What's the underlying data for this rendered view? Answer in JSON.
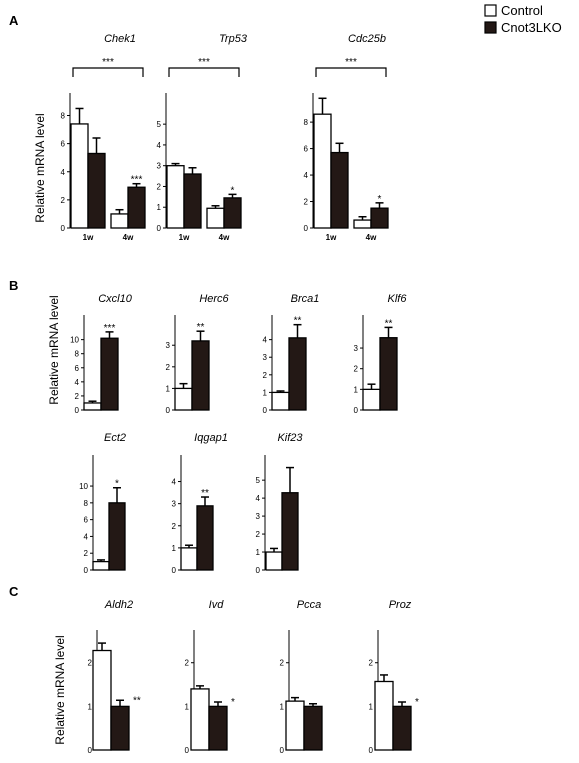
{
  "legend": {
    "items": [
      {
        "label": "Control",
        "color": "#ffffff"
      },
      {
        "label": "Cnot3LKO",
        "color": "#231815"
      }
    ]
  },
  "colors": {
    "control": "#ffffff",
    "knockout": "#231815",
    "stroke": "#000000"
  },
  "panels": [
    {
      "label": "A",
      "ylabel": "Relative mRNA level"
    },
    {
      "label": "B",
      "ylabel": "Relative mRNA level"
    },
    {
      "label": "C",
      "ylabel": "Relative mRNA level"
    }
  ],
  "chart_data": [
    {
      "type": "bar",
      "panel": "A",
      "title": "Chek1",
      "categories": [
        "1w",
        "4w"
      ],
      "yticks": [
        0,
        2,
        4,
        6,
        8
      ],
      "ylim": [
        0,
        9.6
      ],
      "series": [
        {
          "name": "Control",
          "values": [
            7.4,
            1.0
          ],
          "errors": [
            1.1,
            0.3
          ]
        },
        {
          "name": "Cnot3LKO",
          "values": [
            5.3,
            2.9
          ],
          "errors": [
            1.1,
            0.25
          ]
        }
      ],
      "annotations": [
        {
          "text": "***",
          "type": "bracket",
          "from": 0,
          "to": 1
        },
        {
          "text": "***",
          "type": "bar",
          "category": 1,
          "series": 1
        }
      ]
    },
    {
      "type": "bar",
      "panel": "A",
      "title": "Trp53",
      "categories": [
        "1w",
        "4w"
      ],
      "yticks": [
        0,
        1,
        2,
        3,
        4,
        5
      ],
      "ylim": [
        0,
        6.5
      ],
      "series": [
        {
          "name": "Control",
          "values": [
            3.0,
            0.95
          ],
          "errors": [
            0.1,
            0.12
          ]
        },
        {
          "name": "Cnot3LKO",
          "values": [
            2.6,
            1.45
          ],
          "errors": [
            0.3,
            0.17
          ]
        }
      ],
      "annotations": [
        {
          "text": "***",
          "type": "bracket",
          "from": 0,
          "to": 1
        },
        {
          "text": "*",
          "type": "bar",
          "category": 1,
          "series": 1
        }
      ]
    },
    {
      "type": "bar",
      "panel": "A",
      "title": "Cdc25b",
      "categories": [
        "1w",
        "4w"
      ],
      "yticks": [
        0,
        2,
        4,
        6,
        8
      ],
      "ylim": [
        0,
        10.2
      ],
      "series": [
        {
          "name": "Control",
          "values": [
            8.6,
            0.6
          ],
          "errors": [
            1.2,
            0.25
          ]
        },
        {
          "name": "Cnot3LKO",
          "values": [
            5.7,
            1.5
          ],
          "errors": [
            0.7,
            0.4
          ]
        }
      ],
      "annotations": [
        {
          "text": "***",
          "type": "bracket",
          "from": 0,
          "to": 1
        },
        {
          "text": "*",
          "type": "bar",
          "category": 1,
          "series": 1
        }
      ]
    },
    {
      "type": "bar",
      "panel": "B",
      "title": "Cxcl10",
      "categories": [
        ""
      ],
      "yticks": [
        0,
        2,
        4,
        6,
        8,
        10
      ],
      "ylim": [
        0,
        13.5
      ],
      "series": [
        {
          "name": "Control",
          "values": [
            1.0
          ],
          "errors": [
            0.25
          ]
        },
        {
          "name": "Cnot3LKO",
          "values": [
            10.2
          ],
          "errors": [
            0.9
          ]
        }
      ],
      "annotations": [
        {
          "text": "***",
          "type": "bar",
          "category": 0,
          "series": 1
        }
      ]
    },
    {
      "type": "bar",
      "panel": "B",
      "title": "Herc6",
      "categories": [
        ""
      ],
      "yticks": [
        0,
        1,
        2,
        3
      ],
      "ylim": [
        0,
        4.4
      ],
      "series": [
        {
          "name": "Control",
          "values": [
            1.0
          ],
          "errors": [
            0.22
          ]
        },
        {
          "name": "Cnot3LKO",
          "values": [
            3.2
          ],
          "errors": [
            0.45
          ]
        }
      ],
      "annotations": [
        {
          "text": "**",
          "type": "bar",
          "category": 0,
          "series": 1
        }
      ]
    },
    {
      "type": "bar",
      "panel": "B",
      "title": "Brca1",
      "categories": [
        ""
      ],
      "yticks": [
        0,
        1,
        2,
        3,
        4
      ],
      "ylim": [
        0,
        5.4
      ],
      "series": [
        {
          "name": "Control",
          "values": [
            1.0
          ],
          "errors": [
            0.08
          ]
        },
        {
          "name": "Cnot3LKO",
          "values": [
            4.1
          ],
          "errors": [
            0.75
          ]
        }
      ],
      "annotations": [
        {
          "text": "**",
          "type": "bar",
          "category": 0,
          "series": 1
        }
      ]
    },
    {
      "type": "bar",
      "panel": "B",
      "title": "Klf6",
      "categories": [
        ""
      ],
      "yticks": [
        0,
        1,
        2,
        3
      ],
      "ylim": [
        0,
        4.6
      ],
      "series": [
        {
          "name": "Control",
          "values": [
            1.0
          ],
          "errors": [
            0.25
          ]
        },
        {
          "name": "Cnot3LKO",
          "values": [
            3.5
          ],
          "errors": [
            0.5
          ]
        }
      ],
      "annotations": [
        {
          "text": "**",
          "type": "bar",
          "category": 0,
          "series": 1
        }
      ]
    },
    {
      "type": "bar",
      "panel": "B",
      "title": "Ect2",
      "categories": [
        ""
      ],
      "yticks": [
        0,
        2,
        4,
        6,
        8,
        10
      ],
      "ylim": [
        0,
        13.7
      ],
      "series": [
        {
          "name": "Control",
          "values": [
            1.0
          ],
          "errors": [
            0.2
          ]
        },
        {
          "name": "Cnot3LKO",
          "values": [
            8.0
          ],
          "errors": [
            1.8
          ]
        }
      ],
      "annotations": [
        {
          "text": "*",
          "type": "bar",
          "category": 0,
          "series": 1
        }
      ]
    },
    {
      "type": "bar",
      "panel": "B",
      "title": "Iqgap1",
      "categories": [
        ""
      ],
      "yticks": [
        0,
        1,
        2,
        3,
        4
      ],
      "ylim": [
        0,
        5.2
      ],
      "series": [
        {
          "name": "Control",
          "values": [
            1.0
          ],
          "errors": [
            0.12
          ]
        },
        {
          "name": "Cnot3LKO",
          "values": [
            2.9
          ],
          "errors": [
            0.4
          ]
        }
      ],
      "annotations": [
        {
          "text": "**",
          "type": "bar",
          "category": 0,
          "series": 1
        }
      ]
    },
    {
      "type": "bar",
      "panel": "B",
      "title": "Kif23",
      "categories": [
        ""
      ],
      "yticks": [
        0,
        1,
        2,
        3,
        4,
        5
      ],
      "ylim": [
        0,
        6.4
      ],
      "series": [
        {
          "name": "Control",
          "values": [
            1.0
          ],
          "errors": [
            0.2
          ]
        },
        {
          "name": "Cnot3LKO",
          "values": [
            4.3
          ],
          "errors": [
            1.4
          ]
        }
      ],
      "annotations": []
    },
    {
      "type": "bar",
      "panel": "C",
      "title": "Aldh2",
      "categories": [
        ""
      ],
      "yticks": [
        0,
        1,
        2
      ],
      "ylim": [
        0,
        2.75
      ],
      "series": [
        {
          "name": "Control",
          "values": [
            2.28
          ],
          "errors": [
            0.17
          ]
        },
        {
          "name": "Cnot3LKO",
          "values": [
            1.0
          ],
          "errors": [
            0.14
          ]
        }
      ],
      "annotations": [
        {
          "text": "**",
          "type": "bar",
          "category": 0,
          "series": 1
        }
      ]
    },
    {
      "type": "bar",
      "panel": "C",
      "title": "Ivd",
      "categories": [
        ""
      ],
      "yticks": [
        0,
        1,
        2
      ],
      "ylim": [
        0,
        2.75
      ],
      "series": [
        {
          "name": "Control",
          "values": [
            1.4
          ],
          "errors": [
            0.07
          ]
        },
        {
          "name": "Cnot3LKO",
          "values": [
            1.0
          ],
          "errors": [
            0.1
          ]
        }
      ],
      "annotations": [
        {
          "text": "*",
          "type": "bar",
          "category": 0,
          "series": 1
        }
      ]
    },
    {
      "type": "bar",
      "panel": "C",
      "title": "Pcca",
      "categories": [
        ""
      ],
      "yticks": [
        0,
        1,
        2
      ],
      "ylim": [
        0,
        2.75
      ],
      "series": [
        {
          "name": "Control",
          "values": [
            1.12
          ],
          "errors": [
            0.08
          ]
        },
        {
          "name": "Cnot3LKO",
          "values": [
            1.0
          ],
          "errors": [
            0.06
          ]
        }
      ],
      "annotations": []
    },
    {
      "type": "bar",
      "panel": "C",
      "title": "Proz",
      "categories": [
        ""
      ],
      "yticks": [
        0,
        1,
        2
      ],
      "ylim": [
        0,
        2.75
      ],
      "series": [
        {
          "name": "Control",
          "values": [
            1.57
          ],
          "errors": [
            0.15
          ]
        },
        {
          "name": "Cnot3LKO",
          "values": [
            1.0
          ],
          "errors": [
            0.1
          ]
        }
      ],
      "annotations": [
        {
          "text": "*",
          "type": "bar",
          "category": 0,
          "series": 1
        }
      ]
    }
  ]
}
